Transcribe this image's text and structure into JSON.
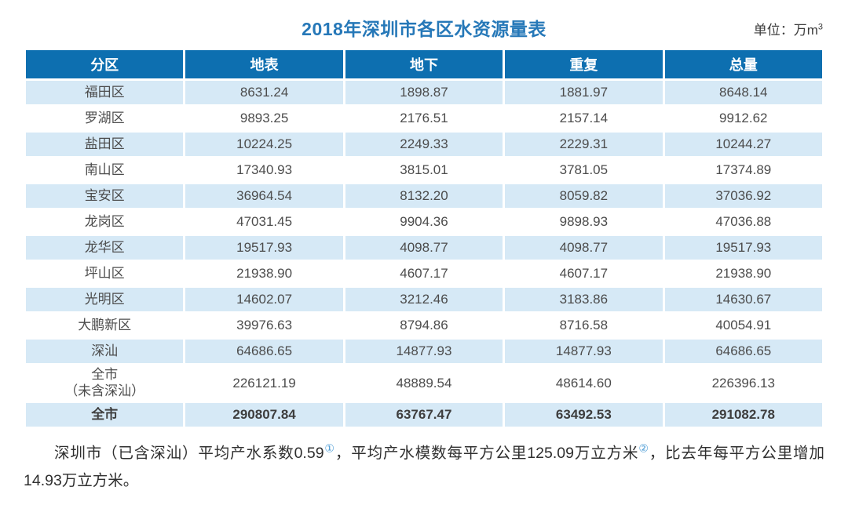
{
  "header": {
    "title": "2018年深圳市各区水资源量表",
    "unit_prefix": "单位：万m",
    "unit_exponent": "3"
  },
  "chart_data": {
    "type": "table",
    "title": "2018年深圳市各区水资源量表",
    "unit": "万m³",
    "columns": [
      "分区",
      "地表",
      "地下",
      "重复",
      "总量"
    ],
    "rows": [
      [
        "福田区",
        "8631.24",
        "1898.87",
        "1881.97",
        "8648.14"
      ],
      [
        "罗湖区",
        "9893.25",
        "2176.51",
        "2157.14",
        "9912.62"
      ],
      [
        "盐田区",
        "10224.25",
        "2249.33",
        "2229.31",
        "10244.27"
      ],
      [
        "南山区",
        "17340.93",
        "3815.01",
        "3781.05",
        "17374.89"
      ],
      [
        "宝安区",
        "36964.54",
        "8132.20",
        "8059.82",
        "37036.92"
      ],
      [
        "龙岗区",
        "47031.45",
        "9904.36",
        "9898.93",
        "47036.88"
      ],
      [
        "龙华区",
        "19517.93",
        "4098.77",
        "4098.77",
        "19517.93"
      ],
      [
        "坪山区",
        "21938.90",
        "4607.17",
        "4607.17",
        "21938.90"
      ],
      [
        "光明区",
        "14602.07",
        "3212.46",
        "3183.86",
        "14630.67"
      ],
      [
        "大鹏新区",
        "39976.63",
        "8794.86",
        "8716.58",
        "40054.91"
      ],
      [
        "深汕",
        "64686.65",
        "14877.93",
        "14877.93",
        "64686.65"
      ],
      [
        "全市\n（未含深汕）",
        "226121.19",
        "48889.54",
        "48614.60",
        "226396.13"
      ],
      [
        "全市",
        "290807.84",
        "63767.47",
        "63492.53",
        "291082.78"
      ]
    ]
  },
  "footnote": {
    "part1": "深圳市（已含深汕）平均产水系数0.59",
    "sup1": "①",
    "part2": "，平均产水模数每平方公里125.09万立方米",
    "sup2": "②",
    "part3": "，比去年每平方公里增加14.93万立方米。"
  },
  "colors": {
    "header_bg": "#0d6fb0",
    "stripe_bg": "#d6e9f6",
    "title_color": "#2678b8",
    "superscript_color": "#4a9bd5"
  }
}
